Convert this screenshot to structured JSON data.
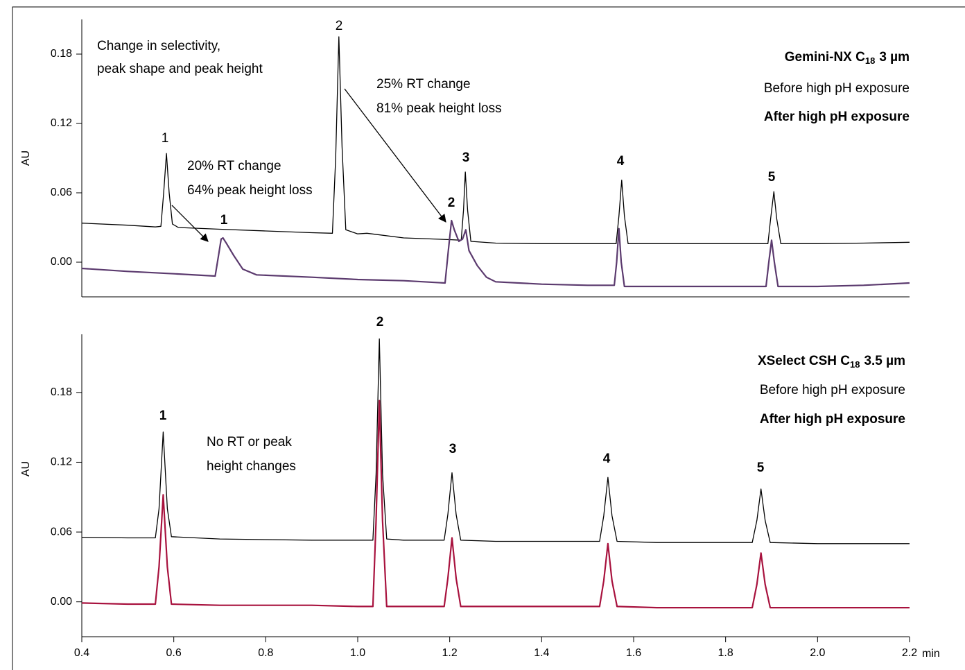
{
  "chart_data": [
    {
      "type": "line",
      "title": [
        "Gemini-NX C",
        "18",
        "3 µm"
      ],
      "ylabel": "AU",
      "annotations": [
        "Change in selectivity,",
        "peak shape and peak height",
        "20% RT change",
        "64% peak height loss",
        "25% RT change",
        "81% peak height loss"
      ],
      "peak_labels": {
        "before": [
          "1",
          "2"
        ],
        "after": [
          "1",
          "2",
          "3",
          "4",
          "5"
        ]
      },
      "xlim": [
        0.4,
        2.2
      ],
      "ylim": [
        -0.03,
        0.21
      ],
      "yticks": [
        {
          "value": 0,
          "label": "0.00"
        },
        {
          "value": 0.06,
          "label": "0.06"
        },
        {
          "value": 0.12,
          "label": "0.12"
        },
        {
          "value": 0.18,
          "label": "0.18"
        }
      ],
      "series": [
        {
          "name": "Before high pH exposure",
          "color": "#000000",
          "x": [
            0.4,
            0.5,
            0.56,
            0.572,
            0.578,
            0.584,
            0.59,
            0.597,
            0.61,
            0.7,
            0.8,
            0.9,
            0.945,
            0.952,
            0.959,
            0.966,
            0.974,
            1.0,
            1.02,
            1.1,
            1.2,
            1.225,
            1.23,
            1.234,
            1.239,
            1.246,
            1.3,
            1.4,
            1.5,
            1.562,
            1.568,
            1.574,
            1.58,
            1.588,
            1.7,
            1.8,
            1.892,
            1.898,
            1.905,
            1.911,
            1.92,
            2.0,
            2.1,
            2.2
          ],
          "values": [
            0.0338,
            0.032,
            0.0305,
            0.031,
            0.06,
            0.094,
            0.06,
            0.033,
            0.03,
            0.0285,
            0.027,
            0.0255,
            0.025,
            0.09,
            0.195,
            0.1,
            0.028,
            0.0245,
            0.025,
            0.021,
            0.0195,
            0.019,
            0.045,
            0.078,
            0.045,
            0.018,
            0.0165,
            0.016,
            0.016,
            0.016,
            0.04,
            0.071,
            0.04,
            0.016,
            0.016,
            0.016,
            0.016,
            0.038,
            0.061,
            0.038,
            0.016,
            0.016,
            0.0165,
            0.0172
          ]
        },
        {
          "name": "After high pH exposure",
          "color": "#5b3a6e",
          "x": [
            0.4,
            0.5,
            0.6,
            0.69,
            0.697,
            0.703,
            0.707,
            0.715,
            0.73,
            0.75,
            0.78,
            0.9,
            1.0,
            1.1,
            1.19,
            1.197,
            1.204,
            1.21,
            1.22,
            1.228,
            1.235,
            1.242,
            1.26,
            1.28,
            1.3,
            1.4,
            1.5,
            1.558,
            1.563,
            1.568,
            1.573,
            1.58,
            1.7,
            1.8,
            1.888,
            1.894,
            1.9,
            1.906,
            1.914,
            2.0,
            2.1,
            2.2
          ],
          "values": [
            -0.0054,
            -0.008,
            -0.01,
            -0.012,
            0.005,
            0.02,
            0.021,
            0.016,
            0.006,
            -0.006,
            -0.011,
            -0.013,
            -0.015,
            -0.016,
            -0.018,
            0.01,
            0.036,
            0.028,
            0.018,
            0.02,
            0.028,
            0.01,
            -0.003,
            -0.013,
            -0.017,
            -0.019,
            -0.02,
            -0.02,
            0.0,
            0.029,
            0.0,
            -0.021,
            -0.021,
            -0.021,
            -0.021,
            0.0,
            0.019,
            0.0,
            -0.021,
            -0.021,
            -0.02,
            -0.018
          ]
        }
      ]
    },
    {
      "type": "line",
      "title": [
        "XSelect CSH C",
        "18",
        "3.5 µm"
      ],
      "ylabel": "AU",
      "xlabel": "min",
      "annotations": [
        "No RT or peak",
        "height changes"
      ],
      "peak_labels": [
        "1",
        "2",
        "3",
        "4",
        "5"
      ],
      "xlim": [
        0.4,
        2.2
      ],
      "ylim": [
        -0.03,
        0.23
      ],
      "xticks": [
        0.4,
        0.6,
        0.8,
        {
          "value": 1.0,
          "label": "1.0"
        },
        1.2,
        1.4,
        1.6,
        1.8,
        {
          "value": 2.0,
          "label": "2.0"
        },
        2.2
      ],
      "yticks": [
        {
          "value": 0,
          "label": "0.00"
        },
        {
          "value": 0.06,
          "label": "0.06"
        },
        {
          "value": 0.12,
          "label": "0.12"
        },
        {
          "value": 0.18,
          "label": "0.18"
        }
      ],
      "x": [
        0.4,
        0.5,
        0.56,
        0.568,
        0.577,
        0.586,
        0.595,
        0.7,
        0.8,
        0.9,
        1.0,
        1.033,
        1.04,
        1.047,
        1.054,
        1.063,
        1.1,
        1.188,
        1.196,
        1.205,
        1.214,
        1.224,
        1.3,
        1.4,
        1.526,
        1.535,
        1.544,
        1.553,
        1.564,
        1.65,
        1.75,
        1.858,
        1.868,
        1.877,
        1.886,
        1.897,
        2.0,
        2.1,
        2.2
      ],
      "series": [
        {
          "name": "Before high pH exposure",
          "color": "#000000",
          "values": [
            0.0555,
            0.055,
            0.055,
            0.08,
            0.146,
            0.08,
            0.056,
            0.054,
            0.0535,
            0.053,
            0.053,
            0.053,
            0.11,
            0.226,
            0.11,
            0.054,
            0.053,
            0.053,
            0.075,
            0.111,
            0.075,
            0.053,
            0.052,
            0.052,
            0.052,
            0.074,
            0.107,
            0.074,
            0.052,
            0.051,
            0.051,
            0.051,
            0.07,
            0.097,
            0.07,
            0.051,
            0.05,
            0.05,
            0.05
          ]
        },
        {
          "name": "After high pH exposure",
          "color": "#a8123e",
          "values": [
            -0.001,
            -0.002,
            -0.002,
            0.03,
            0.092,
            0.03,
            -0.002,
            -0.003,
            -0.003,
            -0.003,
            -0.004,
            -0.004,
            0.07,
            0.173,
            0.07,
            -0.004,
            -0.004,
            -0.004,
            0.02,
            0.055,
            0.02,
            -0.004,
            -0.004,
            -0.004,
            -0.004,
            0.018,
            0.05,
            0.018,
            -0.004,
            -0.005,
            -0.005,
            -0.005,
            0.015,
            0.042,
            0.015,
            -0.005,
            -0.005,
            -0.005,
            -0.005
          ]
        }
      ]
    }
  ]
}
